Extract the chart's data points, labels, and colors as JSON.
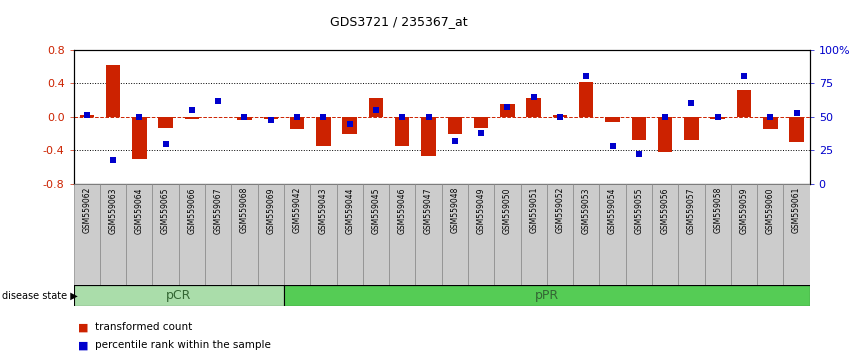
{
  "title": "GDS3721 / 235367_at",
  "samples": [
    "GSM559062",
    "GSM559063",
    "GSM559064",
    "GSM559065",
    "GSM559066",
    "GSM559067",
    "GSM559068",
    "GSM559069",
    "GSM559042",
    "GSM559043",
    "GSM559044",
    "GSM559045",
    "GSM559046",
    "GSM559047",
    "GSM559048",
    "GSM559049",
    "GSM559050",
    "GSM559051",
    "GSM559052",
    "GSM559053",
    "GSM559054",
    "GSM559055",
    "GSM559056",
    "GSM559057",
    "GSM559058",
    "GSM559059",
    "GSM559060",
    "GSM559061"
  ],
  "transformed_count": [
    0.02,
    0.62,
    -0.5,
    -0.13,
    -0.03,
    0.0,
    -0.04,
    -0.02,
    -0.15,
    -0.35,
    -0.2,
    0.22,
    -0.35,
    -0.47,
    -0.2,
    -0.13,
    0.15,
    0.22,
    0.02,
    0.42,
    -0.06,
    -0.28,
    -0.42,
    -0.28,
    -0.02,
    0.32,
    -0.15,
    -0.3
  ],
  "percentile_rank": [
    51,
    18,
    50,
    30,
    55,
    62,
    50,
    48,
    50,
    50,
    45,
    55,
    50,
    50,
    32,
    38,
    57,
    65,
    50,
    80,
    28,
    22,
    50,
    60,
    50,
    80,
    50,
    53
  ],
  "pCR_count": 8,
  "pPR_count": 20,
  "bar_color": "#cc2200",
  "dot_color": "#0000cc",
  "ylim": [
    -0.8,
    0.8
  ],
  "y2lim": [
    0,
    100
  ],
  "yticks": [
    -0.8,
    -0.4,
    0.0,
    0.4,
    0.8
  ],
  "y2ticks": [
    0,
    25,
    50,
    75,
    100
  ],
  "y2ticklabels": [
    "0",
    "25",
    "50",
    "75",
    "100%"
  ],
  "dotted_lines": [
    -0.4,
    0.4
  ],
  "zero_line": 0.0,
  "pCR_color": "#aaddaa",
  "pPR_color": "#55cc55",
  "label_text_color": "#336633",
  "disease_state_label": "disease state",
  "pCR_label": "pCR",
  "pPR_label": "pPR",
  "legend_bar_label": "transformed count",
  "legend_dot_label": "percentile rank within the sample",
  "xtick_bg_color": "#cccccc",
  "xtick_border_color": "#888888"
}
